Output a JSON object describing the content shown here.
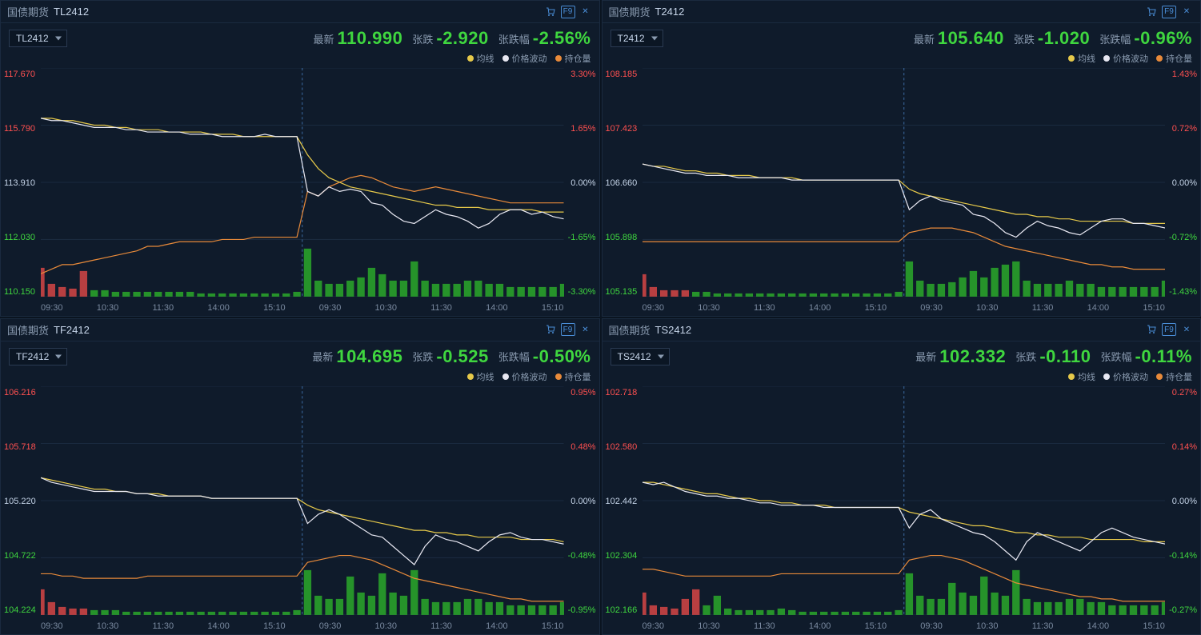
{
  "colors": {
    "bg": "#0a1420",
    "panel_bg": "#0f1b2b",
    "border": "#1a2a3f",
    "text_muted": "#8a9bb0",
    "text_light": "#c5d4e8",
    "green": "#3fd63f",
    "red": "#ff5050",
    "price_line": "#e8e8f2",
    "ma_line": "#e6c94a",
    "oi_line": "#e88a3a",
    "vol_green": "#2aa82a",
    "vol_red": "#d64545",
    "grid": "#1a2a3f",
    "session_divider": "#3a6aa0"
  },
  "common": {
    "legend": [
      {
        "label": "均线",
        "color": "#e6c94a"
      },
      {
        "label": "价格波动",
        "color": "#e8e8f2"
      },
      {
        "label": "持仓量",
        "color": "#e88a3a"
      }
    ],
    "x_ticks": [
      "09:30",
      "10:30",
      "11:30",
      "14:00",
      "15:10",
      "09:30",
      "10:30",
      "11:30",
      "14:00",
      "15:10"
    ],
    "category_label": "国债期货",
    "f9_label": "F9",
    "info_labels": {
      "latest": "最新",
      "change": "张跌",
      "change_pct": "张跌幅"
    }
  },
  "panels": [
    {
      "code": "TL2412",
      "latest": "110.990",
      "change": "-2.920",
      "change_pct": "-2.56%",
      "y_left": [
        {
          "v": "117.670",
          "c": "#ff5050"
        },
        {
          "v": "115.790",
          "c": "#ff5050"
        },
        {
          "v": "113.910",
          "c": "#c5d4e8"
        },
        {
          "v": "112.030",
          "c": "#3fd63f"
        },
        {
          "v": "110.150",
          "c": "#3fd63f"
        }
      ],
      "y_right": [
        {
          "v": "3.30%",
          "c": "#ff5050"
        },
        {
          "v": "1.65%",
          "c": "#ff5050"
        },
        {
          "v": "0.00%",
          "c": "#c5d4e8"
        },
        {
          "v": "-1.65%",
          "c": "#3fd63f"
        },
        {
          "v": "-3.30%",
          "c": "#3fd63f"
        }
      ],
      "price": [
        0.78,
        0.77,
        0.77,
        0.76,
        0.75,
        0.74,
        0.74,
        0.74,
        0.73,
        0.73,
        0.72,
        0.72,
        0.72,
        0.72,
        0.71,
        0.71,
        0.71,
        0.7,
        0.7,
        0.7,
        0.7,
        0.71,
        0.7,
        0.7,
        0.7,
        0.46,
        0.44,
        0.48,
        0.46,
        0.47,
        0.46,
        0.41,
        0.4,
        0.36,
        0.33,
        0.32,
        0.35,
        0.38,
        0.36,
        0.35,
        0.33,
        0.3,
        0.32,
        0.36,
        0.38,
        0.38,
        0.36,
        0.37,
        0.35,
        0.34
      ],
      "ma": [
        0.78,
        0.78,
        0.77,
        0.77,
        0.76,
        0.75,
        0.75,
        0.74,
        0.74,
        0.73,
        0.73,
        0.73,
        0.72,
        0.72,
        0.72,
        0.72,
        0.71,
        0.71,
        0.71,
        0.7,
        0.7,
        0.7,
        0.7,
        0.7,
        0.7,
        0.62,
        0.56,
        0.52,
        0.5,
        0.48,
        0.47,
        0.46,
        0.45,
        0.44,
        0.43,
        0.42,
        0.41,
        0.4,
        0.4,
        0.39,
        0.39,
        0.39,
        0.38,
        0.38,
        0.38,
        0.38,
        0.38,
        0.37,
        0.37,
        0.37
      ],
      "oi": [
        0.1,
        0.12,
        0.14,
        0.14,
        0.15,
        0.16,
        0.17,
        0.18,
        0.19,
        0.2,
        0.22,
        0.22,
        0.23,
        0.24,
        0.24,
        0.24,
        0.24,
        0.25,
        0.25,
        0.25,
        0.26,
        0.26,
        0.26,
        0.26,
        0.26,
        0.46,
        0.44,
        0.48,
        0.5,
        0.52,
        0.53,
        0.52,
        0.5,
        0.48,
        0.47,
        0.46,
        0.47,
        0.48,
        0.47,
        0.46,
        0.45,
        0.44,
        0.43,
        0.42,
        0.41,
        0.41,
        0.41,
        0.41,
        0.41,
        0.41
      ],
      "vol": [
        0.18,
        0.08,
        0.06,
        0.05,
        0.16,
        0.04,
        0.04,
        0.03,
        0.03,
        0.03,
        0.03,
        0.03,
        0.03,
        0.03,
        0.03,
        0.02,
        0.02,
        0.02,
        0.02,
        0.02,
        0.02,
        0.02,
        0.02,
        0.02,
        0.03,
        0.3,
        0.1,
        0.08,
        0.08,
        0.1,
        0.12,
        0.18,
        0.14,
        0.1,
        0.1,
        0.22,
        0.1,
        0.08,
        0.08,
        0.08,
        0.1,
        0.1,
        0.08,
        0.08,
        0.06,
        0.06,
        0.06,
        0.06,
        0.06,
        0.08
      ],
      "vol_color_ix": 5
    },
    {
      "code": "T2412",
      "latest": "105.640",
      "change": "-1.020",
      "change_pct": "-0.96%",
      "y_left": [
        {
          "v": "108.185",
          "c": "#ff5050"
        },
        {
          "v": "107.423",
          "c": "#ff5050"
        },
        {
          "v": "106.660",
          "c": "#c5d4e8"
        },
        {
          "v": "105.898",
          "c": "#3fd63f"
        },
        {
          "v": "105.135",
          "c": "#3fd63f"
        }
      ],
      "y_right": [
        {
          "v": "1.43%",
          "c": "#ff5050"
        },
        {
          "v": "0.72%",
          "c": "#ff5050"
        },
        {
          "v": "0.00%",
          "c": "#c5d4e8"
        },
        {
          "v": "-0.72%",
          "c": "#3fd63f"
        },
        {
          "v": "-1.43%",
          "c": "#3fd63f"
        }
      ],
      "price": [
        0.58,
        0.57,
        0.56,
        0.55,
        0.54,
        0.54,
        0.53,
        0.53,
        0.53,
        0.52,
        0.52,
        0.52,
        0.52,
        0.52,
        0.51,
        0.51,
        0.51,
        0.51,
        0.51,
        0.51,
        0.51,
        0.51,
        0.51,
        0.51,
        0.51,
        0.38,
        0.42,
        0.44,
        0.42,
        0.41,
        0.4,
        0.36,
        0.35,
        0.32,
        0.28,
        0.26,
        0.3,
        0.33,
        0.31,
        0.3,
        0.28,
        0.27,
        0.3,
        0.33,
        0.34,
        0.34,
        0.32,
        0.32,
        0.31,
        0.3
      ],
      "ma": [
        0.58,
        0.57,
        0.57,
        0.56,
        0.55,
        0.55,
        0.54,
        0.54,
        0.53,
        0.53,
        0.53,
        0.52,
        0.52,
        0.52,
        0.52,
        0.51,
        0.51,
        0.51,
        0.51,
        0.51,
        0.51,
        0.51,
        0.51,
        0.51,
        0.51,
        0.47,
        0.45,
        0.44,
        0.43,
        0.42,
        0.41,
        0.4,
        0.39,
        0.38,
        0.37,
        0.36,
        0.36,
        0.35,
        0.35,
        0.34,
        0.34,
        0.33,
        0.33,
        0.33,
        0.33,
        0.33,
        0.32,
        0.32,
        0.32,
        0.32
      ],
      "oi": [
        0.24,
        0.24,
        0.24,
        0.24,
        0.24,
        0.24,
        0.24,
        0.24,
        0.24,
        0.24,
        0.24,
        0.24,
        0.24,
        0.24,
        0.24,
        0.24,
        0.24,
        0.24,
        0.24,
        0.24,
        0.24,
        0.24,
        0.24,
        0.24,
        0.24,
        0.28,
        0.29,
        0.3,
        0.3,
        0.3,
        0.29,
        0.28,
        0.26,
        0.24,
        0.22,
        0.21,
        0.2,
        0.19,
        0.18,
        0.17,
        0.16,
        0.15,
        0.14,
        0.14,
        0.13,
        0.13,
        0.12,
        0.12,
        0.12,
        0.12
      ],
      "vol": [
        0.14,
        0.06,
        0.04,
        0.04,
        0.04,
        0.03,
        0.03,
        0.02,
        0.02,
        0.02,
        0.02,
        0.02,
        0.02,
        0.02,
        0.02,
        0.02,
        0.02,
        0.02,
        0.02,
        0.02,
        0.02,
        0.02,
        0.02,
        0.02,
        0.03,
        0.22,
        0.1,
        0.08,
        0.08,
        0.09,
        0.12,
        0.16,
        0.12,
        0.18,
        0.2,
        0.22,
        0.1,
        0.08,
        0.08,
        0.08,
        0.1,
        0.08,
        0.08,
        0.06,
        0.06,
        0.06,
        0.06,
        0.06,
        0.06,
        0.1
      ],
      "vol_color_ix": 5
    },
    {
      "code": "TF2412",
      "latest": "104.695",
      "change": "-0.525",
      "change_pct": "-0.50%",
      "y_left": [
        {
          "v": "106.216",
          "c": "#ff5050"
        },
        {
          "v": "105.718",
          "c": "#ff5050"
        },
        {
          "v": "105.220",
          "c": "#c5d4e8"
        },
        {
          "v": "104.722",
          "c": "#3fd63f"
        },
        {
          "v": "104.224",
          "c": "#3fd63f"
        }
      ],
      "y_right": [
        {
          "v": "0.95%",
          "c": "#ff5050"
        },
        {
          "v": "0.48%",
          "c": "#ff5050"
        },
        {
          "v": "0.00%",
          "c": "#c5d4e8"
        },
        {
          "v": "-0.48%",
          "c": "#3fd63f"
        },
        {
          "v": "-0.95%",
          "c": "#3fd63f"
        }
      ],
      "price": [
        0.6,
        0.58,
        0.57,
        0.56,
        0.55,
        0.54,
        0.54,
        0.54,
        0.54,
        0.53,
        0.53,
        0.52,
        0.52,
        0.52,
        0.52,
        0.52,
        0.51,
        0.51,
        0.51,
        0.51,
        0.51,
        0.51,
        0.51,
        0.51,
        0.51,
        0.4,
        0.44,
        0.46,
        0.44,
        0.41,
        0.38,
        0.35,
        0.34,
        0.3,
        0.26,
        0.22,
        0.3,
        0.35,
        0.33,
        0.32,
        0.3,
        0.28,
        0.32,
        0.35,
        0.36,
        0.34,
        0.33,
        0.33,
        0.32,
        0.31
      ],
      "ma": [
        0.6,
        0.59,
        0.58,
        0.57,
        0.56,
        0.55,
        0.55,
        0.54,
        0.54,
        0.53,
        0.53,
        0.53,
        0.52,
        0.52,
        0.52,
        0.52,
        0.51,
        0.51,
        0.51,
        0.51,
        0.51,
        0.51,
        0.51,
        0.51,
        0.51,
        0.48,
        0.46,
        0.45,
        0.44,
        0.43,
        0.42,
        0.41,
        0.4,
        0.39,
        0.38,
        0.37,
        0.37,
        0.36,
        0.36,
        0.35,
        0.35,
        0.34,
        0.34,
        0.34,
        0.34,
        0.33,
        0.33,
        0.33,
        0.33,
        0.32
      ],
      "oi": [
        0.18,
        0.18,
        0.17,
        0.17,
        0.16,
        0.16,
        0.16,
        0.16,
        0.16,
        0.16,
        0.17,
        0.17,
        0.17,
        0.17,
        0.17,
        0.17,
        0.17,
        0.17,
        0.17,
        0.17,
        0.17,
        0.17,
        0.17,
        0.17,
        0.17,
        0.23,
        0.24,
        0.25,
        0.26,
        0.26,
        0.25,
        0.24,
        0.22,
        0.2,
        0.18,
        0.16,
        0.15,
        0.14,
        0.13,
        0.12,
        0.11,
        0.1,
        0.09,
        0.08,
        0.07,
        0.07,
        0.06,
        0.06,
        0.06,
        0.06
      ],
      "vol": [
        0.16,
        0.08,
        0.05,
        0.04,
        0.04,
        0.03,
        0.03,
        0.03,
        0.02,
        0.02,
        0.02,
        0.02,
        0.02,
        0.02,
        0.02,
        0.02,
        0.02,
        0.02,
        0.02,
        0.02,
        0.02,
        0.02,
        0.02,
        0.02,
        0.03,
        0.28,
        0.12,
        0.1,
        0.1,
        0.24,
        0.14,
        0.12,
        0.26,
        0.14,
        0.12,
        0.28,
        0.1,
        0.08,
        0.08,
        0.08,
        0.1,
        0.1,
        0.08,
        0.08,
        0.06,
        0.06,
        0.06,
        0.06,
        0.06,
        0.08
      ],
      "vol_color_ix": 5
    },
    {
      "code": "TS2412",
      "latest": "102.332",
      "change": "-0.110",
      "change_pct": "-0.11%",
      "y_left": [
        {
          "v": "102.718",
          "c": "#ff5050"
        },
        {
          "v": "102.580",
          "c": "#ff5050"
        },
        {
          "v": "102.442",
          "c": "#c5d4e8"
        },
        {
          "v": "102.304",
          "c": "#3fd63f"
        },
        {
          "v": "102.166",
          "c": "#3fd63f"
        }
      ],
      "y_right": [
        {
          "v": "0.27%",
          "c": "#ff5050"
        },
        {
          "v": "0.14%",
          "c": "#ff5050"
        },
        {
          "v": "0.00%",
          "c": "#c5d4e8"
        },
        {
          "v": "-0.14%",
          "c": "#3fd63f"
        },
        {
          "v": "-0.27%",
          "c": "#3fd63f"
        }
      ],
      "price": [
        0.58,
        0.57,
        0.58,
        0.56,
        0.54,
        0.53,
        0.52,
        0.52,
        0.51,
        0.51,
        0.5,
        0.49,
        0.49,
        0.48,
        0.48,
        0.48,
        0.48,
        0.47,
        0.47,
        0.47,
        0.47,
        0.47,
        0.47,
        0.47,
        0.47,
        0.38,
        0.44,
        0.46,
        0.42,
        0.4,
        0.38,
        0.36,
        0.35,
        0.32,
        0.28,
        0.24,
        0.32,
        0.36,
        0.34,
        0.32,
        0.3,
        0.28,
        0.32,
        0.36,
        0.38,
        0.36,
        0.34,
        0.33,
        0.32,
        0.31
      ],
      "ma": [
        0.58,
        0.58,
        0.57,
        0.56,
        0.55,
        0.54,
        0.53,
        0.53,
        0.52,
        0.51,
        0.51,
        0.5,
        0.5,
        0.49,
        0.49,
        0.48,
        0.48,
        0.48,
        0.47,
        0.47,
        0.47,
        0.47,
        0.47,
        0.47,
        0.47,
        0.45,
        0.44,
        0.43,
        0.42,
        0.41,
        0.4,
        0.39,
        0.39,
        0.38,
        0.37,
        0.36,
        0.36,
        0.35,
        0.35,
        0.34,
        0.34,
        0.34,
        0.33,
        0.33,
        0.33,
        0.33,
        0.33,
        0.32,
        0.32,
        0.32
      ],
      "oi": [
        0.2,
        0.2,
        0.19,
        0.18,
        0.17,
        0.17,
        0.17,
        0.17,
        0.17,
        0.17,
        0.17,
        0.17,
        0.17,
        0.18,
        0.18,
        0.18,
        0.18,
        0.18,
        0.18,
        0.18,
        0.18,
        0.18,
        0.18,
        0.18,
        0.18,
        0.24,
        0.25,
        0.26,
        0.26,
        0.25,
        0.24,
        0.22,
        0.2,
        0.18,
        0.16,
        0.14,
        0.13,
        0.12,
        0.11,
        0.1,
        0.09,
        0.08,
        0.08,
        0.07,
        0.07,
        0.06,
        0.06,
        0.06,
        0.06,
        0.06
      ],
      "vol": [
        0.14,
        0.06,
        0.05,
        0.04,
        0.1,
        0.16,
        0.06,
        0.12,
        0.04,
        0.03,
        0.03,
        0.03,
        0.03,
        0.04,
        0.03,
        0.02,
        0.02,
        0.02,
        0.02,
        0.02,
        0.02,
        0.02,
        0.02,
        0.02,
        0.03,
        0.26,
        0.12,
        0.1,
        0.1,
        0.2,
        0.14,
        0.12,
        0.24,
        0.14,
        0.12,
        0.28,
        0.1,
        0.08,
        0.08,
        0.08,
        0.1,
        0.1,
        0.08,
        0.08,
        0.06,
        0.06,
        0.06,
        0.06,
        0.06,
        0.08
      ],
      "vol_color_ix": 6
    }
  ]
}
